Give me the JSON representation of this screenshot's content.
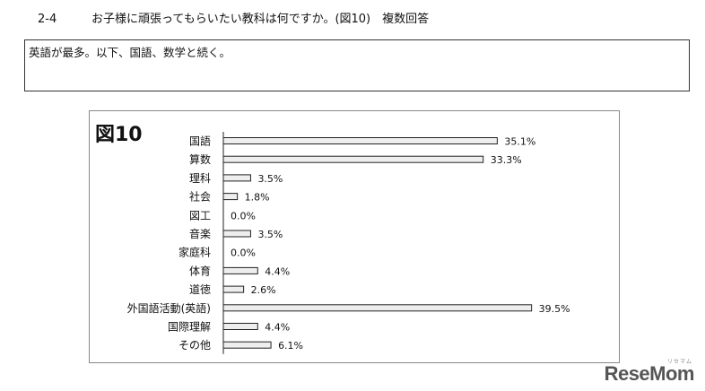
{
  "heading": {
    "number": "2-4",
    "question": "お子様に頑張ってもらいたい教科は何ですか。(図10)　複数回答"
  },
  "summary": "英語が最多。以下、国語、数学と続く。",
  "figure_label": "図10",
  "watermark": {
    "text": "ReseMom",
    "small": "リセマム"
  },
  "chart_data": {
    "type": "bar",
    "orientation": "horizontal",
    "categories": [
      "国語",
      "算数",
      "理科",
      "社会",
      "図工",
      "音楽",
      "家庭科",
      "体育",
      "道徳",
      "外国語活動(英語)",
      "国際理解",
      "その他"
    ],
    "values": [
      35.1,
      33.3,
      3.5,
      1.8,
      0.0,
      3.5,
      0.0,
      4.4,
      2.6,
      39.5,
      4.4,
      6.1
    ],
    "value_labels": [
      "35.1%",
      "33.3%",
      "3.5%",
      "1.8%",
      "0.0%",
      "3.5%",
      "0.0%",
      "4.4%",
      "2.6%",
      "39.5%",
      "4.4%",
      "6.1%"
    ],
    "xlim": [
      0,
      40
    ],
    "grid": false,
    "legend": "none",
    "colors": {
      "bar_fill": "#eeeeee",
      "bar_stroke": "#222222"
    }
  }
}
